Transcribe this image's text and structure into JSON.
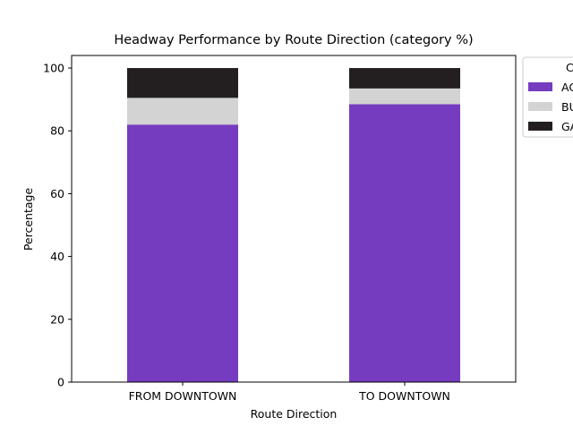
{
  "chart_data": {
    "type": "bar",
    "stacked": true,
    "title": "Headway Performance by Route Direction (category %)",
    "xlabel": "Route Direction",
    "ylabel": "Percentage",
    "categories": [
      "FROM DOWNTOWN",
      "TO DOWNTOWN"
    ],
    "ylim": [
      0,
      104
    ],
    "yticks": [
      0,
      20,
      40,
      60,
      80,
      100
    ],
    "grid": false,
    "legend": {
      "placement": "right-outside-top",
      "title": "C"
    },
    "series": [
      {
        "name": "AC",
        "values": [
          82.0,
          88.5
        ],
        "color": "#763cbf"
      },
      {
        "name": "BU",
        "values": [
          8.5,
          5.0
        ],
        "color": "#d3d3d3"
      },
      {
        "name": "GA",
        "values": [
          9.5,
          6.5
        ],
        "color": "#231f20"
      }
    ]
  }
}
